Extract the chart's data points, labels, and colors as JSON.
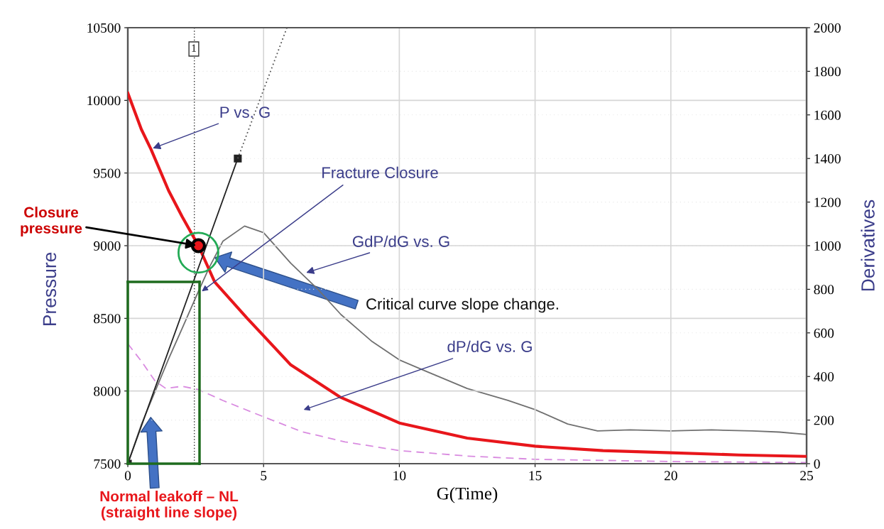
{
  "chart_data": {
    "type": "line",
    "xlabel": "G(Time)",
    "ylabel": "Pressure",
    "y2label": "Derivatives",
    "xlim": [
      0,
      25
    ],
    "xticks": [
      0,
      5,
      10,
      15,
      20,
      25
    ],
    "ylim": [
      7500,
      10500
    ],
    "yticks": [
      7500,
      8000,
      8500,
      9000,
      9500,
      10000,
      10500
    ],
    "y2lim": [
      0,
      2000
    ],
    "y2ticks": [
      0,
      200,
      400,
      600,
      800,
      1000,
      1200,
      1400,
      1600,
      1800,
      2000
    ],
    "grid": true,
    "series": [
      {
        "color": "#e8161b",
        "x": [
          0,
          0.5,
          0.85,
          1.5,
          2.0,
          2.6,
          3.2,
          4.4,
          5,
          6,
          7.8,
          10,
          12.5,
          15,
          17.5,
          20,
          22.5,
          25
        ],
        "values": [
          10050,
          9800,
          9665,
          9380,
          9200,
          9000,
          8750,
          8500,
          8380,
          8180,
          7960,
          7780,
          7676,
          7620,
          7590,
          7575,
          7560,
          7550
        ]
      },
      {
        "axis": "y2",
        "color": "#707070",
        "x": [
          0,
          0.5,
          1,
          1.5,
          2,
          2.6,
          3,
          3.5,
          4.3,
          5,
          6,
          7,
          7.85,
          9,
          10,
          11,
          12.5,
          14,
          15,
          16.2,
          17.3,
          18.5,
          20,
          21.5,
          23,
          24,
          25
        ],
        "values": [
          0,
          180,
          330,
          480,
          620,
          790,
          900,
          1020,
          1090,
          1060,
          920,
          800,
          684,
          560,
          476,
          423,
          345,
          290,
          248,
          182,
          150,
          155,
          150,
          155,
          150,
          145,
          134
        ]
      },
      {
        "axis": "y2",
        "color": "#d98be0",
        "line_style": "dashed",
        "x": [
          0,
          0.5,
          1,
          1.4,
          2,
          2.6,
          3.5,
          5,
          6.4,
          8,
          10,
          12.5,
          15,
          20,
          25
        ],
        "values": [
          550,
          470,
          380,
          345,
          355,
          340,
          290,
          215,
          147,
          100,
          60,
          35,
          20,
          10,
          5
        ]
      },
      {
        "color": "#222222",
        "marker": "square",
        "x": [
          0,
          4.05
        ],
        "values": [
          7500,
          9600
        ]
      },
      {
        "color": "#555555",
        "line_style": "dotted",
        "x": [
          4.05,
          5.86
        ],
        "values": [
          9600,
          10500
        ]
      },
      {
        "type": "scatter",
        "color": "#e8161b",
        "x": [
          2.6
        ],
        "values": [
          9000
        ]
      }
    ],
    "ref_lines": [
      {
        "axis": "x",
        "value": 2.45,
        "color": "#333333",
        "line_style": "dotted"
      }
    ],
    "annotations": [
      {
        "text": "P vs. G",
        "x": 0.85,
        "y": 9665
      },
      "Fracture Closure",
      {
        "text": "GdP/dG vs. G",
        "x": 6.5,
        "y": 8810
      },
      "dP/dG vs. G",
      {
        "text": "Closure\npressure",
        "x": 2.6,
        "y": 9000
      },
      "Critical curve slope change.",
      "Normal leakoff – NL\n(straight line slope)",
      "1"
    ]
  }
}
